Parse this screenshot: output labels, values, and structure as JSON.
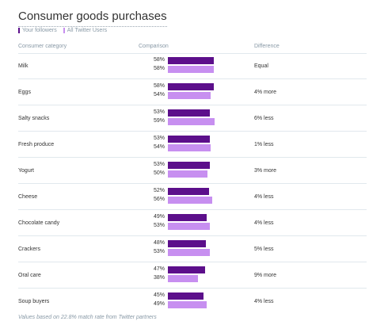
{
  "title": "Consumer goods purchases",
  "legend": {
    "followers": "Your followers",
    "all_users": "All Twitter Users",
    "followers_color": "#5c0f8b",
    "all_users_color": "#c78ff0"
  },
  "columns": {
    "category": "Consumer category",
    "comparison": "Comparison",
    "difference": "Difference"
  },
  "rows": [
    {
      "category": "Milk",
      "followers": "58%",
      "all": "58%",
      "f": 58,
      "a": 58,
      "difference": "Equal"
    },
    {
      "category": "Eggs",
      "followers": "58%",
      "all": "54%",
      "f": 58,
      "a": 54,
      "difference": "4% more"
    },
    {
      "category": "Salty snacks",
      "followers": "53%",
      "all": "59%",
      "f": 53,
      "a": 59,
      "difference": "6% less"
    },
    {
      "category": "Fresh produce",
      "followers": "53%",
      "all": "54%",
      "f": 53,
      "a": 54,
      "difference": "1% less"
    },
    {
      "category": "Yogurt",
      "followers": "53%",
      "all": "50%",
      "f": 53,
      "a": 50,
      "difference": "3% more"
    },
    {
      "category": "Cheese",
      "followers": "52%",
      "all": "56%",
      "f": 52,
      "a": 56,
      "difference": "4% less"
    },
    {
      "category": "Chocolate candy",
      "followers": "49%",
      "all": "53%",
      "f": 49,
      "a": 53,
      "difference": "4% less"
    },
    {
      "category": "Crackers",
      "followers": "48%",
      "all": "53%",
      "f": 48,
      "a": 53,
      "difference": "5% less"
    },
    {
      "category": "Oral care",
      "followers": "47%",
      "all": "38%",
      "f": 47,
      "a": 38,
      "difference": "9% more"
    },
    {
      "category": "Soup buyers",
      "followers": "45%",
      "all": "49%",
      "f": 45,
      "a": 49,
      "difference": "4% less"
    }
  ],
  "footer": "Values based on 22.8% match rate from Twitter partners"
}
